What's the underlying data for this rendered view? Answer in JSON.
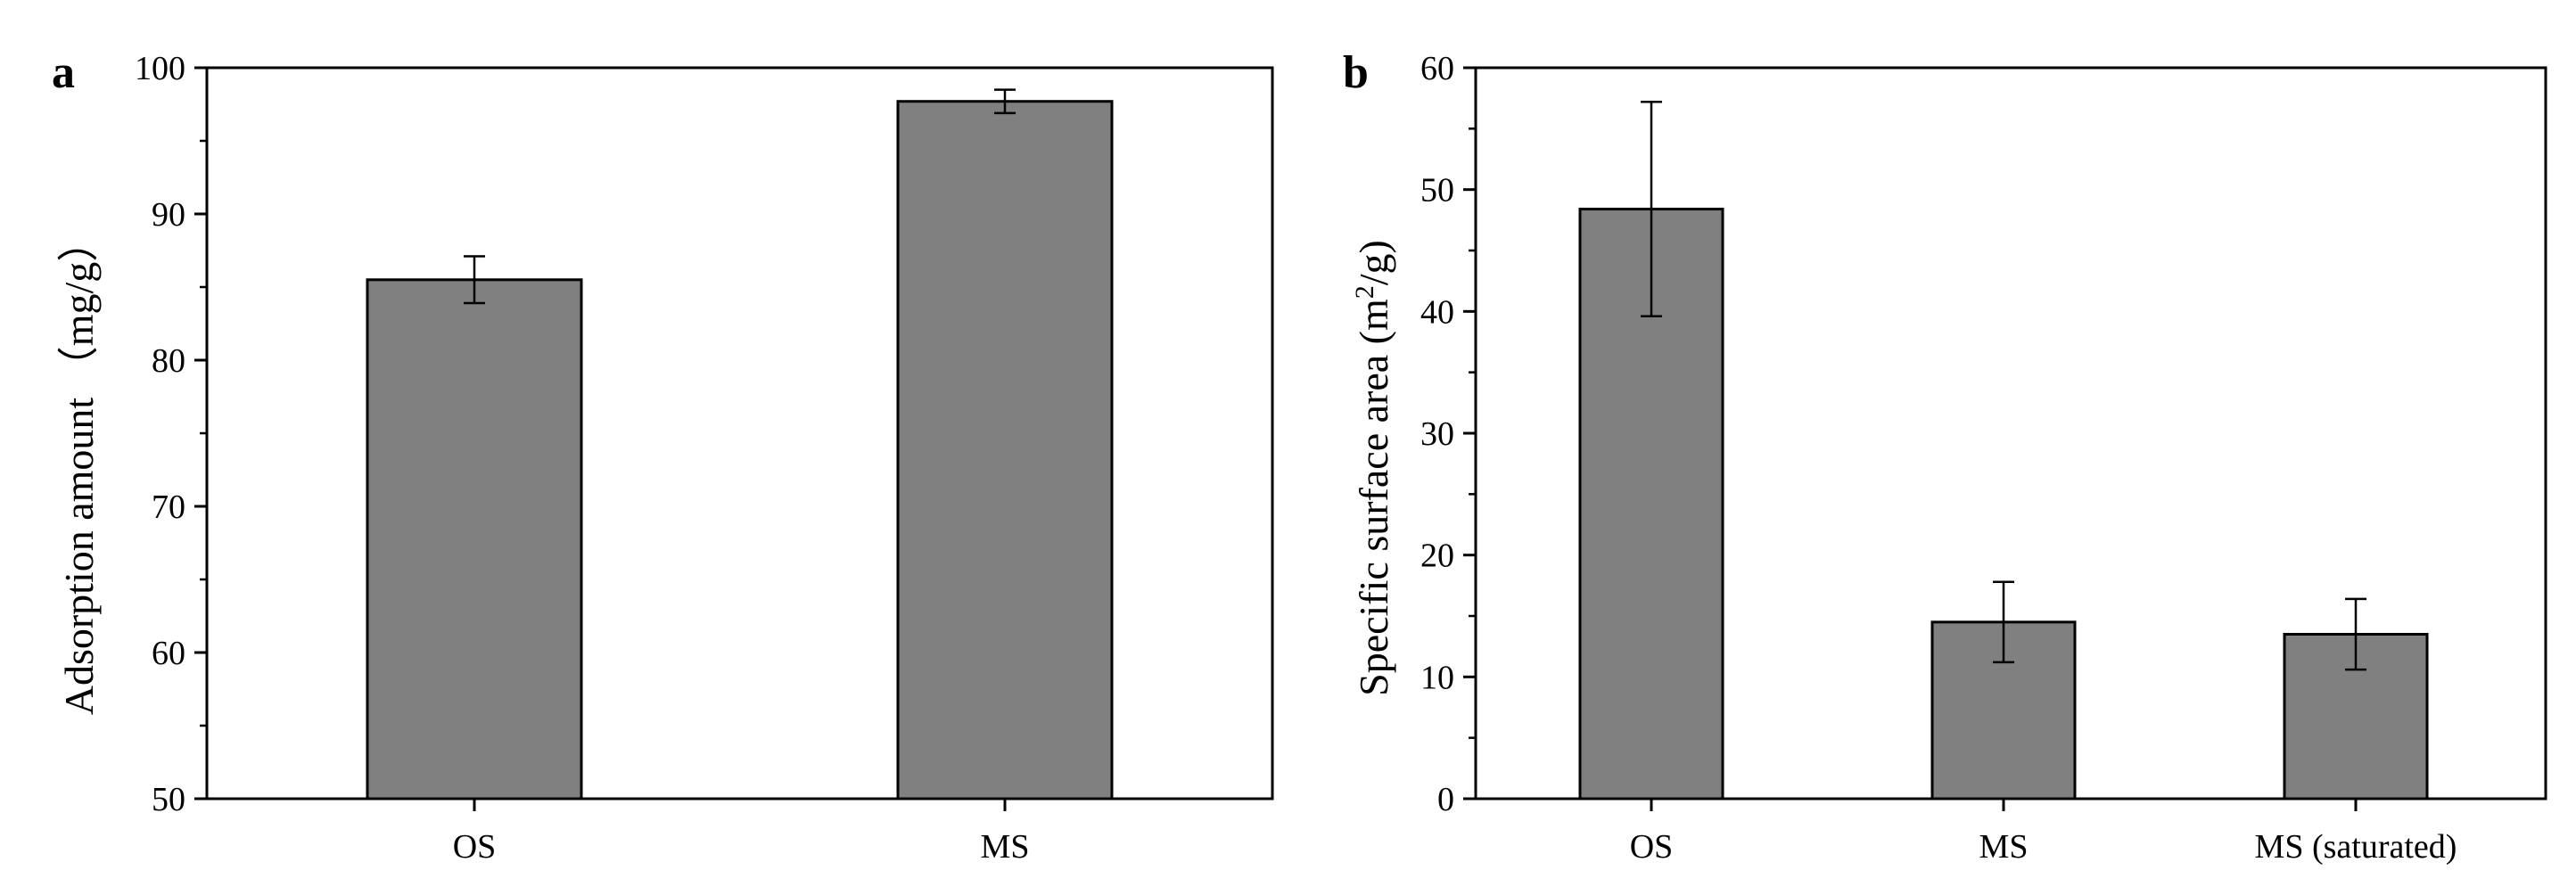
{
  "chart_data": [
    {
      "panel": "a",
      "type": "bar",
      "categories": [
        "OS",
        "MS"
      ],
      "values": [
        85.5,
        97.7
      ],
      "errors": [
        1.6,
        0.8
      ],
      "ylabel": "Adsorption amount （mg/g）",
      "ylim": [
        50,
        100
      ],
      "yticks": [
        "50",
        "60",
        "70",
        "80",
        "90",
        "100"
      ],
      "bar_color": "#808080",
      "grid": false
    },
    {
      "panel": "b",
      "type": "bar",
      "categories": [
        "OS",
        "MS",
        "MS (saturated)"
      ],
      "values": [
        48.4,
        14.5,
        13.5
      ],
      "errors": [
        8.8,
        3.3,
        2.9
      ],
      "ylabel_prefix": "Specific surface area (m",
      "ylabel_sup": "2",
      "ylabel_suffix": "/g)",
      "ylim": [
        0,
        60
      ],
      "yticks": [
        "0",
        "10",
        "20",
        "30",
        "40",
        "50",
        "60"
      ],
      "bar_color": "#808080",
      "grid": false
    }
  ]
}
